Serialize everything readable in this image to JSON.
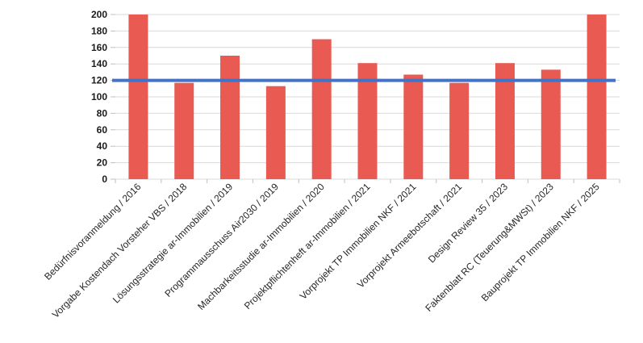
{
  "chart_data": {
    "type": "bar",
    "title": "",
    "xlabel": "",
    "ylabel": "",
    "categories": [
      "Bedürfnisvoranmeldung / 2016",
      "Vorgabe Kostendach Vorsteher VBS / 2018",
      "Lösungsstrategie ar-Immobilien / 2019",
      "Programmausschuss Air2030 / 2019",
      "Machbarkeitsstudie ar-Immobilien / 2020",
      "Projektpflichtenheft ar-Immobilien / 2021",
      "Vorprojekt TP Immobilien NKF / 2021",
      "Vorprojekt Armeebotschaft / 2021",
      "Design Review 35 / 2023",
      "Faktenblatt RC (Teuerung&MWSt) / 2023",
      "Bauprojekt TP Immobilien NKF / 2025"
    ],
    "values": [
      200,
      117,
      150,
      113,
      170,
      141,
      127,
      117,
      141,
      133,
      200
    ],
    "reference_line": {
      "value": 120,
      "color": "#4472C4"
    },
    "ylim": [
      0,
      200
    ],
    "ytick_step": 20,
    "y_ticks": [
      "0",
      "20",
      "40",
      "60",
      "80",
      "100",
      "120",
      "140",
      "160",
      "180",
      "200"
    ],
    "grid": true,
    "legend": "none",
    "bar_color": "#E85A52"
  },
  "colors": {
    "background": "#FFFFFF",
    "gridline": "#D9D9D9",
    "tick": "#BFBFBF",
    "axis_text": "#1A1A1A",
    "bar": "#E85A52",
    "reference_line": "#4472C4"
  }
}
